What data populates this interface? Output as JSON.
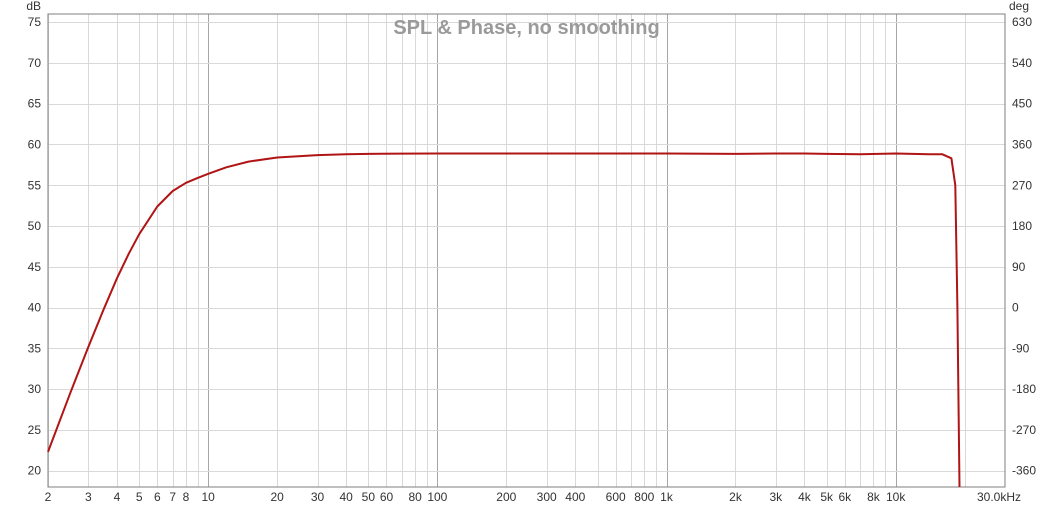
{
  "chart_data": {
    "type": "line",
    "title": "SPL & Phase, no smoothing",
    "left_axis": {
      "unit": "dB",
      "range": [
        18,
        76
      ],
      "ticks": [
        75,
        70,
        65,
        60,
        55,
        50,
        45,
        40,
        35,
        30,
        25,
        20
      ]
    },
    "right_axis": {
      "unit": "deg",
      "range": [
        -396,
        648
      ],
      "ticks": [
        630,
        540,
        450,
        360,
        270,
        180,
        90,
        0,
        -90,
        -180,
        -270,
        -360
      ]
    },
    "x_axis": {
      "scale": "log",
      "range_hz": [
        2,
        30000
      ],
      "ticks": [
        {
          "value": 2,
          "label": "2"
        },
        {
          "value": 3,
          "label": "3"
        },
        {
          "value": 4,
          "label": "4"
        },
        {
          "value": 5,
          "label": "5"
        },
        {
          "value": 6,
          "label": "6"
        },
        {
          "value": 7,
          "label": "7"
        },
        {
          "value": 8,
          "label": "8"
        },
        {
          "value": 10,
          "label": "10"
        },
        {
          "value": 20,
          "label": "20"
        },
        {
          "value": 30,
          "label": "30"
        },
        {
          "value": 40,
          "label": "40"
        },
        {
          "value": 50,
          "label": "50"
        },
        {
          "value": 60,
          "label": "60"
        },
        {
          "value": 80,
          "label": "80"
        },
        {
          "value": 100,
          "label": "100"
        },
        {
          "value": 200,
          "label": "200"
        },
        {
          "value": 300,
          "label": "300"
        },
        {
          "value": 400,
          "label": "400"
        },
        {
          "value": 600,
          "label": "600"
        },
        {
          "value": 800,
          "label": "800"
        },
        {
          "value": 1000,
          "label": "1k"
        },
        {
          "value": 2000,
          "label": "2k"
        },
        {
          "value": 3000,
          "label": "3k"
        },
        {
          "value": 4000,
          "label": "4k"
        },
        {
          "value": 5000,
          "label": "5k"
        },
        {
          "value": 6000,
          "label": "6k"
        },
        {
          "value": 8000,
          "label": "8k"
        },
        {
          "value": 10000,
          "label": "10k"
        },
        {
          "value": 30000,
          "label": "30.0kHz"
        }
      ],
      "grid_minor": [
        2,
        3,
        4,
        5,
        6,
        7,
        8,
        9,
        20,
        30,
        40,
        50,
        60,
        70,
        80,
        90,
        200,
        300,
        400,
        500,
        600,
        700,
        800,
        900,
        2000,
        3000,
        4000,
        5000,
        6000,
        7000,
        8000,
        9000,
        20000
      ],
      "grid_major": [
        10,
        100,
        1000,
        10000
      ]
    },
    "grid": true,
    "series": [
      {
        "color": "#b01414",
        "x": [
          2,
          2.5,
          3,
          3.5,
          4,
          4.5,
          5,
          6,
          7,
          8,
          9,
          10,
          12,
          15,
          20,
          30,
          40,
          50,
          70,
          100,
          200,
          500,
          1000,
          2000,
          3000,
          4000,
          5000,
          7000,
          10000,
          14000,
          16000,
          17500,
          18200,
          18600,
          19000
        ],
        "y": [
          22.3,
          29.5,
          35.2,
          39.8,
          43.6,
          46.6,
          49.0,
          52.4,
          54.3,
          55.3,
          55.9,
          56.4,
          57.2,
          57.9,
          58.4,
          58.7,
          58.8,
          58.85,
          58.88,
          58.9,
          58.9,
          58.9,
          58.9,
          58.85,
          58.9,
          58.9,
          58.85,
          58.8,
          58.9,
          58.8,
          58.8,
          58.3,
          55.0,
          40.0,
          18
        ]
      }
    ]
  }
}
